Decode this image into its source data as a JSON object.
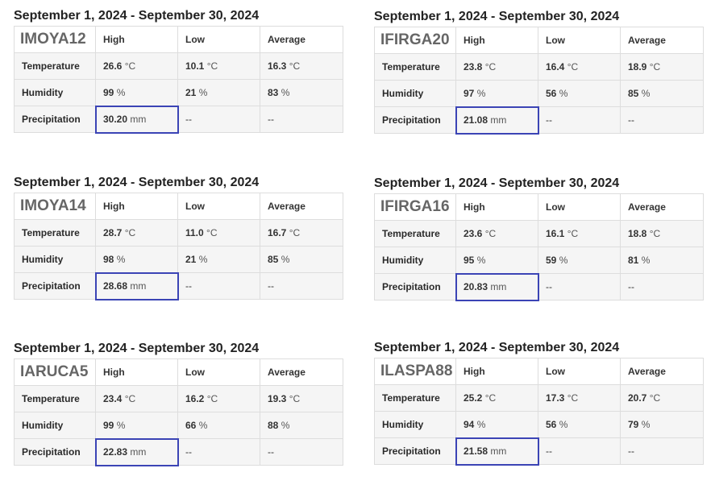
{
  "column_headers": {
    "high": "High",
    "low": "Low",
    "average": "Average"
  },
  "row_labels": {
    "temperature": "Temperature",
    "humidity": "Humidity",
    "precipitation": "Precipitation"
  },
  "units": {
    "temp": "°C",
    "humidity": "%",
    "precip": "mm"
  },
  "empty_value": "--",
  "highlight_color": "#3b44b5",
  "stations": [
    {
      "date_range": "September 1, 2024 - September 30, 2024",
      "id": "IMOYA12",
      "temperature": {
        "high": "26.6",
        "low": "10.1",
        "average": "16.3"
      },
      "humidity": {
        "high": "99",
        "low": "21",
        "average": "83"
      },
      "precipitation": {
        "high": "30.20"
      }
    },
    {
      "date_range": "September 1, 2024 - September 30, 2024",
      "id": "IFIRGA20",
      "temperature": {
        "high": "23.8",
        "low": "16.4",
        "average": "18.9"
      },
      "humidity": {
        "high": "97",
        "low": "56",
        "average": "85"
      },
      "precipitation": {
        "high": "21.08"
      }
    },
    {
      "date_range": "September 1, 2024 - September 30, 2024",
      "id": "IMOYA14",
      "temperature": {
        "high": "28.7",
        "low": "11.0",
        "average": "16.7"
      },
      "humidity": {
        "high": "98",
        "low": "21",
        "average": "85"
      },
      "precipitation": {
        "high": "28.68"
      }
    },
    {
      "date_range": "September 1, 2024 - September 30, 2024",
      "id": "IFIRGA16",
      "temperature": {
        "high": "23.6",
        "low": "16.1",
        "average": "18.8"
      },
      "humidity": {
        "high": "95",
        "low": "59",
        "average": "81"
      },
      "precipitation": {
        "high": "20.83"
      }
    },
    {
      "date_range": "September 1, 2024 - September 30, 2024",
      "id": "IARUCA5",
      "temperature": {
        "high": "23.4",
        "low": "16.2",
        "average": "19.3"
      },
      "humidity": {
        "high": "99",
        "low": "66",
        "average": "88"
      },
      "precipitation": {
        "high": "22.83"
      }
    },
    {
      "date_range": "September 1, 2024 - September 30, 2024",
      "id": "ILASPA88",
      "temperature": {
        "high": "25.2",
        "low": "17.3",
        "average": "20.7"
      },
      "humidity": {
        "high": "94",
        "low": "56",
        "average": "79"
      },
      "precipitation": {
        "high": "21.58"
      }
    }
  ]
}
